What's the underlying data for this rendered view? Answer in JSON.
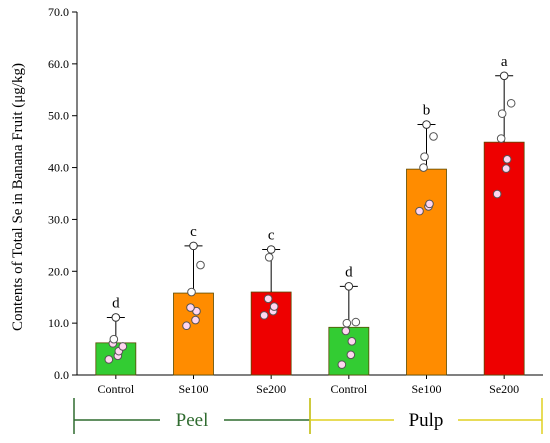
{
  "chart_data": {
    "type": "bar",
    "title": "",
    "xlabel": "",
    "ylabel": "Contents of Total Se in Banana Fruit (μg/kg)",
    "ylim": [
      0,
      70
    ],
    "y_ticks": [
      "0.0",
      "10.0",
      "20.0",
      "30.0",
      "40.0",
      "50.0",
      "60.0",
      "70.0"
    ],
    "categories": [
      "Control",
      "Se100",
      "Se200",
      "Control",
      "Se100",
      "Se200"
    ],
    "groups": [
      {
        "label": "Peel",
        "color": "#2f6b2f",
        "start": 0,
        "end": 2
      },
      {
        "label": "Pulp",
        "color": "#e0d020",
        "start": 3,
        "end": 5
      }
    ],
    "values": [
      6.2,
      15.8,
      16.0,
      9.2,
      39.7,
      44.9
    ],
    "error_upper": [
      11.1,
      24.9,
      24.2,
      17.1,
      48.3,
      57.7
    ],
    "significance": [
      "d",
      "c",
      "c",
      "d",
      "b",
      "a"
    ],
    "bar_colors": [
      "#33cc33",
      "#ff8c00",
      "#ee0000",
      "#33cc33",
      "#ff8c00",
      "#ee0000"
    ],
    "points": [
      [
        3.0,
        3.7,
        4.6,
        6.1,
        6.9,
        5.5
      ],
      [
        9.5,
        10.6,
        12.3,
        13.0,
        16.0,
        21.2
      ],
      [
        11.5,
        12.3,
        13.2,
        14.7,
        22.7
      ],
      [
        2.0,
        3.9,
        6.5,
        8.5,
        10.0,
        10.2
      ],
      [
        31.6,
        32.5,
        33.0,
        40.0,
        42.1,
        46.0
      ],
      [
        34.9,
        39.8,
        41.6,
        45.6,
        50.4,
        52.4
      ]
    ]
  }
}
